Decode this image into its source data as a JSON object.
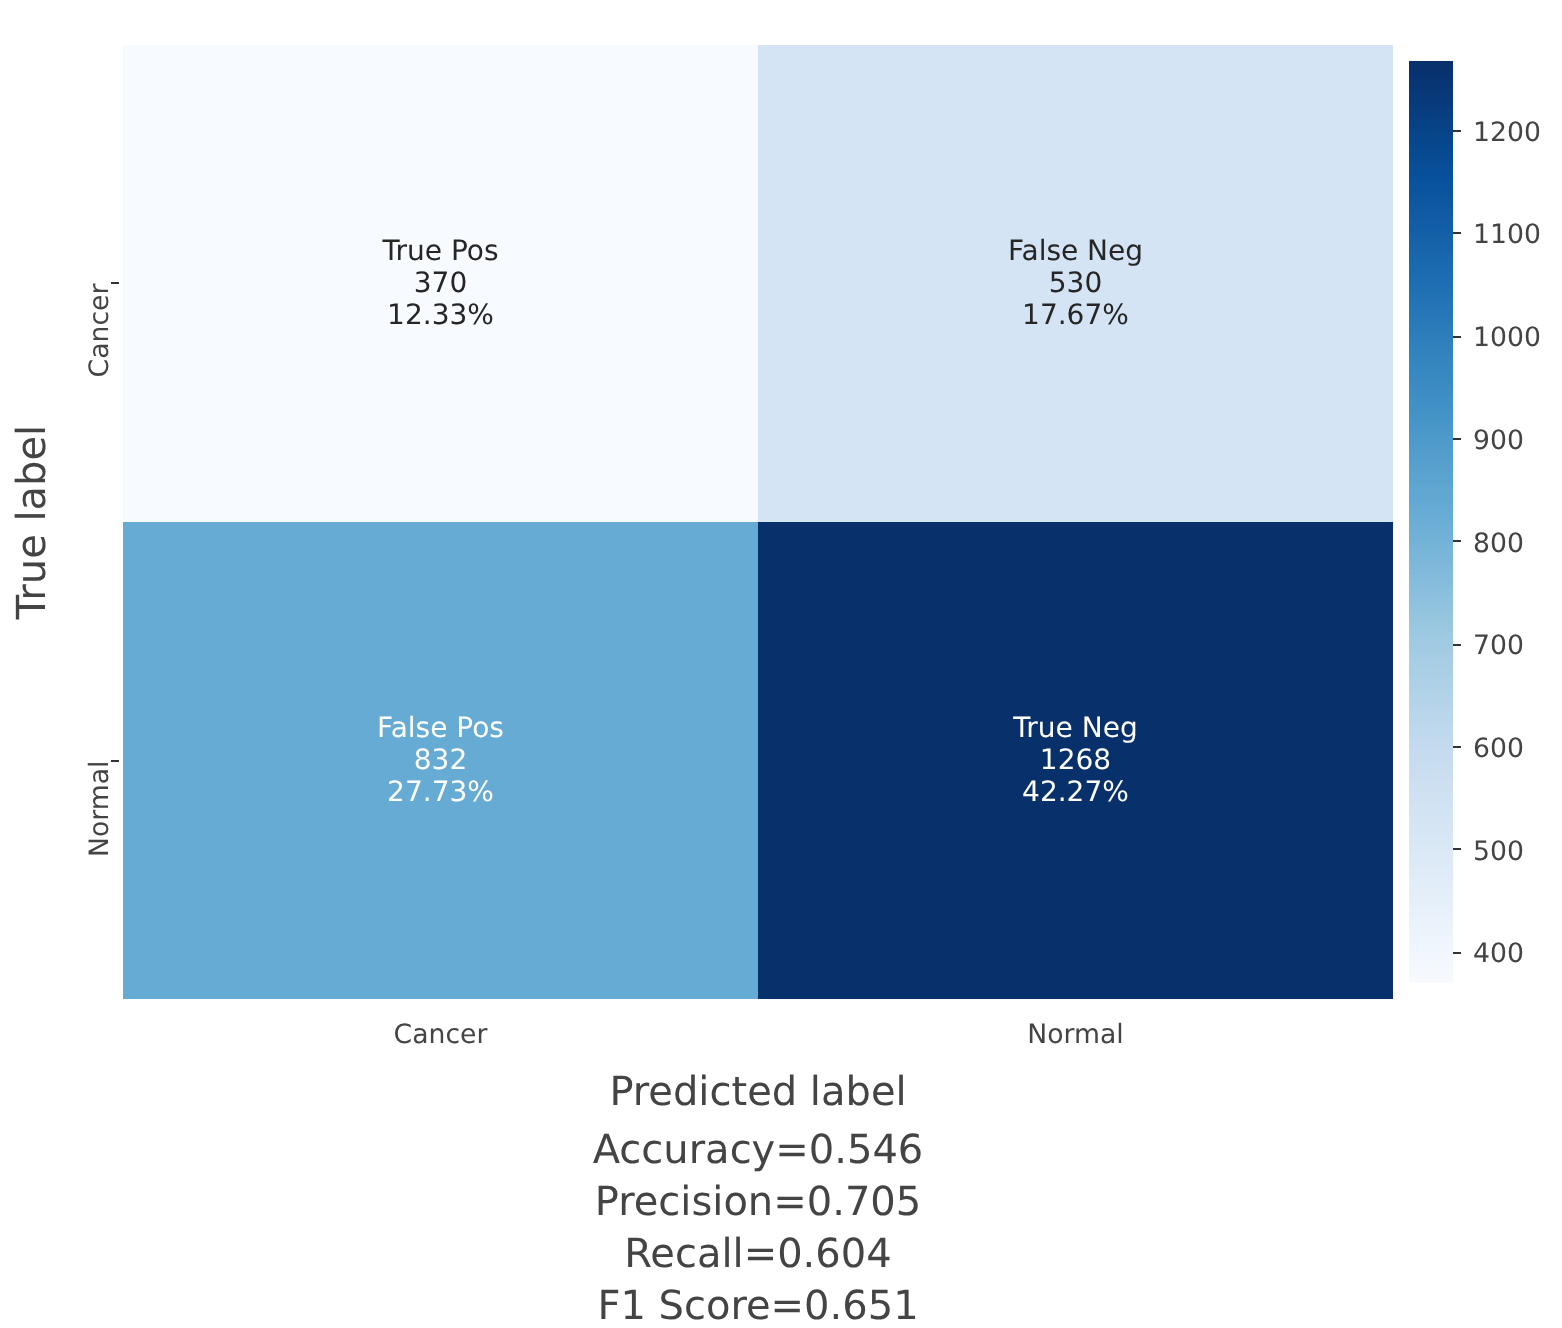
{
  "chart_data": {
    "type": "heatmap",
    "xlabel": "Predicted label",
    "ylabel": "True label",
    "categories": [
      "Cancer",
      "Normal"
    ],
    "y_categories": [
      "Cancer",
      "Normal"
    ],
    "cells": [
      [
        370,
        530
      ],
      [
        832,
        1268
      ]
    ],
    "cell_labels": [
      [
        "True Pos\n370\n12.33%",
        "False Neg\n530\n17.67%"
      ],
      [
        "False Pos\n832\n27.73%",
        "True Neg\n1268\n42.27%"
      ]
    ],
    "clim": [
      370,
      1268
    ],
    "cticks": [
      400,
      500,
      600,
      700,
      800,
      900,
      1000,
      1100,
      1200
    ],
    "annotations": [
      "Accuracy=0.546",
      "Precision=0.705",
      "Recall=0.604",
      "F1 Score=0.651"
    ]
  }
}
